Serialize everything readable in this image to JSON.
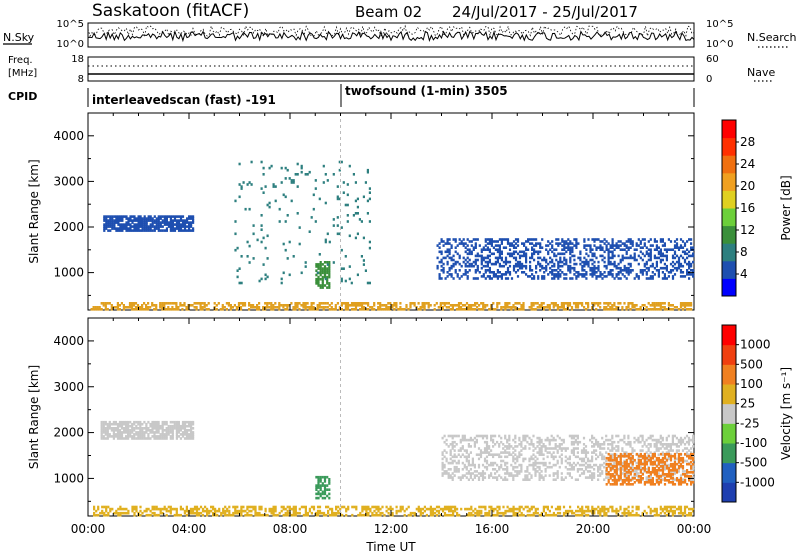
{
  "header": {
    "station": "Saskatoon (fitACF)",
    "beam": "Beam 02",
    "date_range": "24/Jul/2017 - 25/Jul/2017"
  },
  "top_strips": {
    "nsky_label": "N.Sky",
    "nsearch_label": "N.Search",
    "nsky_ticks": [
      "10^5",
      "10^0"
    ],
    "nsearch_ticks": [
      "10^5",
      "10^0"
    ],
    "freq_label_1": "Freq.",
    "freq_label_2": "[MHz]",
    "freq_ticks": [
      "18",
      "8"
    ],
    "nave_label": "Nave",
    "nave_ticks": [
      "60",
      "0"
    ],
    "cpid_label": "CPID",
    "cpid_1": "interleavedscan (fast) -191",
    "cpid_2": "twofsound (1-min) 3505"
  },
  "chart_data": [
    {
      "type": "heatmap",
      "title": "",
      "quantity": "Power",
      "ylabel": "Slant Range [km]",
      "xlabel": "",
      "x_ticks": [
        "00:00",
        "04:00",
        "08:00",
        "12:00",
        "16:00",
        "20:00",
        "00:00"
      ],
      "y_ticks": [
        "1000",
        "2000",
        "3000",
        "4000"
      ],
      "ylim": [
        180,
        4500
      ],
      "colorbar": {
        "label": "Power [dB]",
        "ticks": [
          "4",
          "8",
          "12",
          "16",
          "20",
          "24",
          "28"
        ],
        "range": [
          0,
          30
        ],
        "colors": [
          "#0000ff",
          "#1e4fb0",
          "#2d7f7f",
          "#3a8f3a",
          "#6ccf3a",
          "#e0d020",
          "#f0a020",
          "#f07010",
          "#ff3000",
          "#ff0000"
        ]
      },
      "echo_regions": [
        {
          "t_start": 0.1,
          "t_end": 24.0,
          "r_min": 180,
          "r_max": 400,
          "color": "#e0a020",
          "density": 0.55
        },
        {
          "t_start": 0.6,
          "t_end": 4.2,
          "r_min": 1950,
          "r_max": 2300,
          "color": "#1e4fb0",
          "density": 0.85
        },
        {
          "t_start": 9.0,
          "t_end": 9.6,
          "r_min": 700,
          "r_max": 1300,
          "color": "#3a8f3a",
          "density": 0.7
        },
        {
          "t_start": 13.8,
          "t_end": 24.0,
          "r_min": 900,
          "r_max": 1800,
          "color": "#1e4fb0",
          "density": 0.4
        },
        {
          "t_start": 5.8,
          "t_end": 11.2,
          "r_min": 800,
          "r_max": 3500,
          "color": "#2d7f7f",
          "density": 0.04
        }
      ]
    },
    {
      "type": "heatmap",
      "title": "",
      "quantity": "Velocity",
      "ylabel": "Slant Range [km]",
      "xlabel": "Time UT",
      "x_ticks": [
        "00:00",
        "04:00",
        "08:00",
        "12:00",
        "16:00",
        "20:00",
        "00:00"
      ],
      "y_ticks": [
        "1000",
        "2000",
        "3000",
        "4000"
      ],
      "ylim": [
        180,
        4500
      ],
      "colorbar": {
        "label": "Velocity [m s⁻¹]",
        "ticks": [
          "1000",
          "500",
          "100",
          "25",
          "-25",
          "-100",
          "-500",
          "-1000"
        ],
        "range": [
          -1200,
          1200
        ],
        "colors": [
          "#1e3fb0",
          "#2060c0",
          "#3a9a5a",
          "#6ccf3a",
          "#c8c8c8",
          "#e0b020",
          "#f08020",
          "#f04010",
          "#ff0000"
        ]
      },
      "echo_regions": [
        {
          "t_start": 0.5,
          "t_end": 4.2,
          "r_min": 1900,
          "r_max": 2300,
          "color": "#c8c8c8",
          "density": 0.8
        },
        {
          "t_start": 0.2,
          "t_end": 24.0,
          "r_min": 180,
          "r_max": 450,
          "color": "#e0b020",
          "density": 0.5
        },
        {
          "t_start": 14.0,
          "t_end": 24.0,
          "r_min": 1000,
          "r_max": 2000,
          "color": "#c8c8c8",
          "density": 0.4
        },
        {
          "t_start": 20.5,
          "t_end": 24.0,
          "r_min": 900,
          "r_max": 1600,
          "color": "#f08020",
          "density": 0.5
        },
        {
          "t_start": 9.0,
          "t_end": 9.6,
          "r_min": 600,
          "r_max": 1100,
          "color": "#3a9a5a",
          "density": 0.6
        }
      ]
    }
  ]
}
